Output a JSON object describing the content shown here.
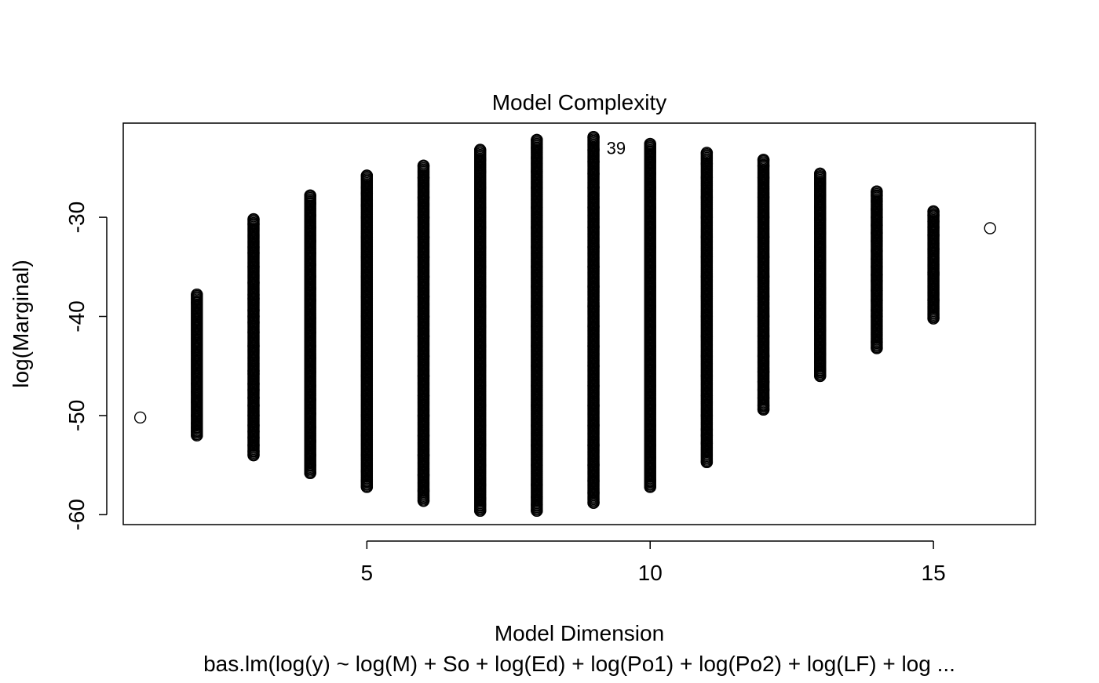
{
  "chart_data": {
    "type": "scatter",
    "title": "Model Complexity",
    "xlabel": "Model Dimension",
    "ylabel": "log(Marginal)",
    "subtitle": "bas.lm(log(y) ~ log(M) + So + log(Ed) + log(Po1) + log(Po2) + log(LF) + log ...",
    "xlim": [
      0.7,
      16.8
    ],
    "ylim": [
      -61.0,
      -20.5
    ],
    "x_ticks": [
      5,
      10,
      15
    ],
    "y_ticks": [
      -60,
      -50,
      -40,
      -30
    ],
    "x_tick_labels": [
      "5",
      "10",
      "15"
    ],
    "y_tick_labels": [
      "-60",
      "-50",
      "-40",
      "-30"
    ],
    "grid": false,
    "legend": "none",
    "marker": "open-circle",
    "point_color": "#000000",
    "annotations": [
      {
        "text": "39",
        "x": 9.4,
        "y": -23.0
      }
    ],
    "columns": [
      {
        "x": 1,
        "min": -50.2,
        "max": -50.2,
        "points": [
          -50.2
        ]
      },
      {
        "x": 2,
        "min": -52.0,
        "max": -37.8,
        "points": [
          -37.8,
          -38.6,
          -46.8,
          -47.6,
          -48.6,
          -50.0,
          -50.8,
          -51.2,
          -51.6,
          -52.0
        ]
      },
      {
        "x": 3,
        "min": -54.0,
        "max": -30.2,
        "points": [
          -30.2,
          -30.7,
          -33.0,
          -33.6,
          -35.0,
          -36.6,
          -37.8,
          -38.2,
          -39.4,
          -40.0,
          -40.6,
          -41.6,
          -43.0,
          -45.5,
          -45.8,
          -46.8,
          -47.4,
          -48.2,
          -49.0,
          -50.0,
          -51.0,
          -51.6,
          -52.2,
          -53.0,
          -53.6,
          -54.0
        ]
      },
      {
        "x": 4,
        "min": -55.8,
        "max": -27.8,
        "points": [
          -27.8,
          -28.6,
          -29.8,
          -31.0,
          -32.4,
          -33.6,
          -34.8,
          -36.0,
          -37.2,
          -38.4,
          -40.2,
          -41.6,
          -43.0,
          -44.2,
          -45.6,
          -47.0,
          -48.4,
          -49.8,
          -51.2,
          -52.6,
          -54.0,
          -55.0,
          -55.8
        ]
      },
      {
        "x": 5,
        "min": -57.2,
        "max": -25.8,
        "points": [
          -25.8,
          -27.0,
          -27.6,
          -28.8,
          -30.0,
          -32.0,
          -34.0,
          -36.0,
          -38.0,
          -40.0,
          -42.0,
          -44.0,
          -46.0,
          -48.0,
          -50.0,
          -52.0,
          -54.0,
          -55.6,
          -56.6,
          -57.2
        ]
      },
      {
        "x": 6,
        "min": -58.6,
        "max": -24.8,
        "points": [
          -24.8,
          -26.0,
          -28.0,
          -30.0,
          -32.0,
          -34.0,
          -36.0,
          -38.0,
          -40.0,
          -42.0,
          -44.0,
          -46.0,
          -48.0,
          -50.0,
          -52.0,
          -54.0,
          -56.0,
          -57.6,
          -58.6
        ]
      },
      {
        "x": 7,
        "min": -59.6,
        "max": -23.2,
        "points": [
          -23.2,
          -24.2,
          -25.4,
          -27.0,
          -29.0,
          -31.0,
          -33.0,
          -35.0,
          -37.0,
          -39.0,
          -41.0,
          -43.0,
          -45.0,
          -47.0,
          -49.0,
          -51.0,
          -53.0,
          -55.0,
          -57.0,
          -58.4,
          -59.0,
          -59.6
        ]
      },
      {
        "x": 8,
        "min": -59.6,
        "max": -22.2,
        "points": [
          -22.2,
          -23.0,
          -24.0,
          -25.4,
          -27.0,
          -29.0,
          -31.0,
          -33.0,
          -35.0,
          -37.0,
          -39.0,
          -41.0,
          -43.0,
          -45.0,
          -47.0,
          -49.0,
          -51.0,
          -53.0,
          -55.0,
          -57.0,
          -58.2,
          -59.0,
          -59.6
        ]
      },
      {
        "x": 9,
        "min": -58.8,
        "max": -21.9,
        "points": [
          -21.9,
          -23.2,
          -24.4,
          -25.6,
          -27.0,
          -29.0,
          -31.0,
          -33.0,
          -35.0,
          -37.0,
          -39.0,
          -41.0,
          -43.0,
          -45.0,
          -47.0,
          -49.0,
          -51.0,
          -53.0,
          -55.0,
          -56.6,
          -57.8,
          -58.8
        ]
      },
      {
        "x": 10,
        "min": -57.2,
        "max": -22.6,
        "points": [
          -22.6,
          -23.4,
          -24.4,
          -25.6,
          -27.0,
          -29.0,
          -31.0,
          -33.0,
          -35.0,
          -37.0,
          -39.0,
          -41.0,
          -43.0,
          -45.0,
          -47.0,
          -49.0,
          -51.0,
          -53.0,
          -54.2,
          -55.2,
          -56.6,
          -57.2
        ]
      },
      {
        "x": 11,
        "min": -54.7,
        "max": -23.5,
        "points": [
          -23.5,
          -24.6,
          -26.0,
          -28.0,
          -30.0,
          -32.0,
          -34.0,
          -36.0,
          -38.0,
          -40.0,
          -42.0,
          -44.0,
          -46.0,
          -48.0,
          -50.0,
          -51.4,
          -52.0,
          -52.8,
          -54.7
        ]
      },
      {
        "x": 12,
        "min": -49.4,
        "max": -24.2,
        "points": [
          -24.2,
          -24.8,
          -26.0,
          -28.0,
          -30.0,
          -32.0,
          -34.0,
          -36.0,
          -38.0,
          -40.0,
          -42.0,
          -44.0,
          -45.6,
          -46.6,
          -47.4,
          -48.2,
          -49.0,
          -49.4
        ]
      },
      {
        "x": 13,
        "min": -46.0,
        "max": -25.6,
        "points": [
          -25.6,
          -26.6,
          -27.8,
          -29.0,
          -30.2,
          -31.6,
          -33.0,
          -34.4,
          -35.8,
          -37.2,
          -38.6,
          -40.0,
          -41.4,
          -42.8,
          -43.8,
          -44.6,
          -45.4,
          -46.0
        ]
      },
      {
        "x": 14,
        "min": -43.2,
        "max": -27.4,
        "points": [
          -27.4,
          -27.8,
          -28.4,
          -29.2,
          -30.0,
          -30.8,
          -31.6,
          -32.4,
          -33.4,
          -34.2,
          -35.0,
          -35.8,
          -36.4,
          -37.4,
          -38.4,
          -39.4,
          -40.0,
          -42.6,
          -43.2
        ]
      },
      {
        "x": 15,
        "min": -40.2,
        "max": -29.4,
        "points": [
          -29.4,
          -29.8,
          -30.4,
          -31.0,
          -31.8,
          -33.2,
          -35.6,
          -35.8,
          -38.4,
          -40.2
        ]
      },
      {
        "x": 16,
        "min": -31.1,
        "max": -31.1,
        "points": [
          -31.1
        ]
      }
    ]
  }
}
